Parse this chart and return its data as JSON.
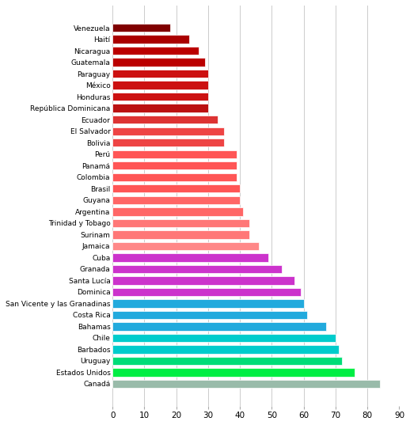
{
  "countries": [
    "Venezuela",
    "Haití",
    "Nicaragua",
    "Guatemala",
    "Paraguay",
    "México",
    "Honduras",
    "República Dominicana",
    "Ecuador",
    "El Salvador",
    "Bolivia",
    "Perú",
    "Panamá",
    "Colombia",
    "Brasil",
    "Guyana",
    "Argentina",
    "Trinidad y Tobago",
    "Surinam",
    "Jamaica",
    "Cuba",
    "Granada",
    "Santa Lucía",
    "Dominica",
    "San Vicente y las Granadinas",
    "Costa Rica",
    "Bahamas",
    "Chile",
    "Barbados",
    "Uruguay",
    "Estados Unidos",
    "Canadá"
  ],
  "values": [
    18,
    24,
    27,
    29,
    30,
    30,
    30,
    30,
    33,
    35,
    35,
    39,
    39,
    39,
    40,
    40,
    41,
    43,
    43,
    46,
    49,
    53,
    57,
    59,
    60,
    61,
    67,
    70,
    71,
    72,
    76,
    84
  ],
  "colors": [
    "#800000",
    "#AA0000",
    "#BB0000",
    "#BB0000",
    "#CC1111",
    "#CC1111",
    "#CC1111",
    "#BB1111",
    "#DD3333",
    "#EE4444",
    "#EE4444",
    "#FF5555",
    "#FF5555",
    "#FF5555",
    "#FF5555",
    "#FF6666",
    "#FF6666",
    "#FF7777",
    "#FF7777",
    "#FF8888",
    "#CC33CC",
    "#CC33CC",
    "#CC33CC",
    "#CC33CC",
    "#22AADD",
    "#22AADD",
    "#22AADD",
    "#00CCCC",
    "#00CCCC",
    "#00DD77",
    "#00EE44",
    "#99BBAA"
  ],
  "background_color": "#ffffff",
  "grid_color": "#cccccc",
  "xlim": [
    0,
    90
  ],
  "xticks": [
    0,
    10,
    20,
    30,
    40,
    50,
    60,
    70,
    80,
    90
  ],
  "figsize": [
    5.18,
    5.37
  ],
  "dpi": 100
}
